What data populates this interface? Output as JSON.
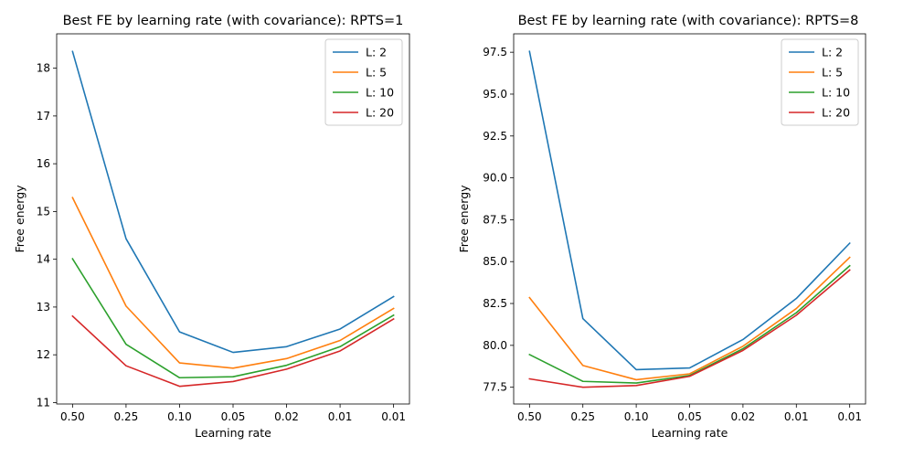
{
  "chart_data": [
    {
      "type": "line",
      "title": "Best FE by learning rate (with covariance): RPTS=1",
      "xlabel": "Learning rate",
      "ylabel": "Free energy",
      "categories": [
        "0.50",
        "0.25",
        "0.10",
        "0.05",
        "0.02",
        "0.01",
        "0.01"
      ],
      "ylim": [
        10.97,
        18.72
      ],
      "yticks": [
        "11",
        "12",
        "13",
        "14",
        "15",
        "16",
        "17",
        "18"
      ],
      "legend_position": "upper-right",
      "grid": false,
      "series": [
        {
          "name": "L: 2",
          "color": "#1f77b4",
          "values": [
            18.35,
            14.43,
            12.48,
            12.05,
            12.17,
            12.54,
            13.22
          ]
        },
        {
          "name": "L: 5",
          "color": "#ff7f0e",
          "values": [
            15.29,
            13.02,
            11.83,
            11.72,
            11.92,
            12.3,
            12.97
          ]
        },
        {
          "name": "L: 10",
          "color": "#2ca02c",
          "values": [
            14.01,
            12.22,
            11.52,
            11.54,
            11.78,
            12.17,
            12.83
          ]
        },
        {
          "name": "L: 20",
          "color": "#d62728",
          "values": [
            12.81,
            11.77,
            11.34,
            11.44,
            11.7,
            12.08,
            12.75
          ]
        }
      ]
    },
    {
      "type": "line",
      "title": "Best FE by learning rate (with covariance): RPTS=8",
      "xlabel": "Learning rate",
      "ylabel": "Free energy",
      "categories": [
        "0.50",
        "0.25",
        "0.10",
        "0.05",
        "0.02",
        "0.01",
        "0.01"
      ],
      "ylim": [
        76.5,
        98.6
      ],
      "yticks": [
        "77.5",
        "80.0",
        "82.5",
        "85.0",
        "87.5",
        "90.0",
        "92.5",
        "95.0",
        "97.5"
      ],
      "legend_position": "upper-right",
      "grid": false,
      "series": [
        {
          "name": "L: 2",
          "color": "#1f77b4",
          "values": [
            97.55,
            81.6,
            78.55,
            78.65,
            80.35,
            82.8,
            86.1
          ]
        },
        {
          "name": "L: 5",
          "color": "#ff7f0e",
          "values": [
            82.85,
            78.8,
            77.95,
            78.3,
            79.95,
            82.2,
            85.25
          ]
        },
        {
          "name": "L: 10",
          "color": "#2ca02c",
          "values": [
            79.45,
            77.85,
            77.75,
            78.2,
            79.8,
            81.95,
            84.75
          ]
        },
        {
          "name": "L: 20",
          "color": "#d62728",
          "values": [
            78.0,
            77.5,
            77.6,
            78.15,
            79.7,
            81.8,
            84.5
          ]
        }
      ]
    }
  ]
}
